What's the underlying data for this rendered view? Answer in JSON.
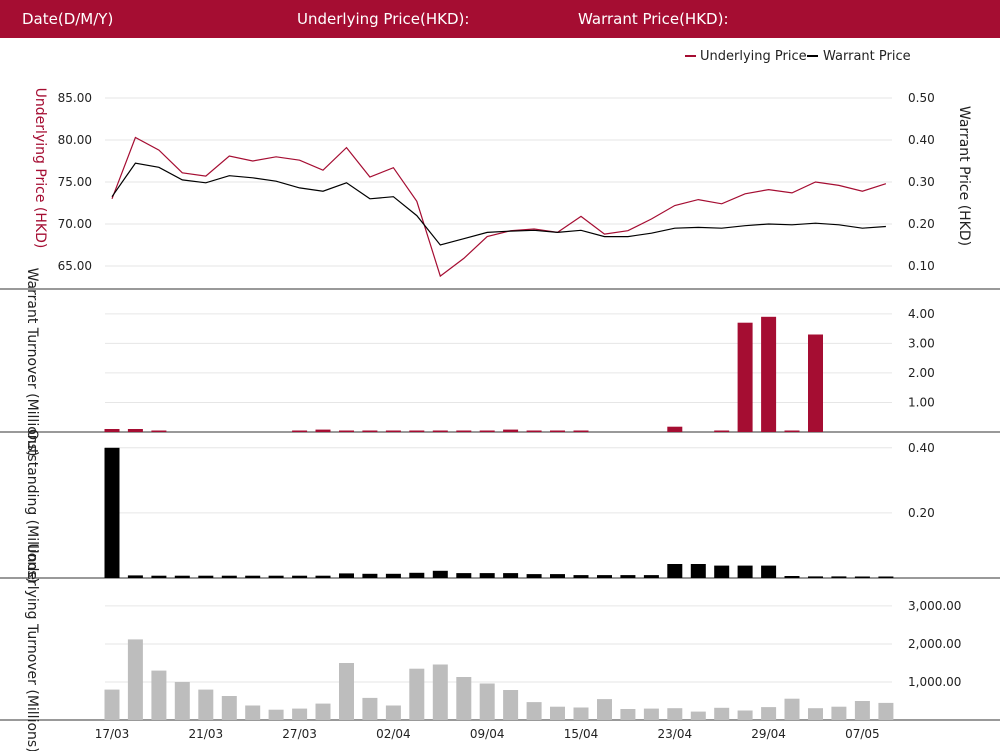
{
  "header": {
    "date_label": "Date(D/M/Y)",
    "underlying_label": "Underlying Price(HKD):",
    "warrant_label": "Warrant Price(HKD):"
  },
  "legend": {
    "underlying": "Underlying Price",
    "warrant": "Warrant Price"
  },
  "colors": {
    "accent": "#a50d32",
    "warrant": "#000000",
    "bars_gray": "#bdbdbd",
    "grid": "#e6e6e6"
  },
  "chart_data": [
    {
      "type": "line",
      "ylabel_left": "Underlying Price (HKD)",
      "ylabel_right": "Warrant Price (HKD)",
      "ylim_left": [
        62.5,
        87.5
      ],
      "ylim_right": [
        0.05,
        0.55
      ],
      "yticks_left": [
        "85.00",
        "80.00",
        "75.00",
        "70.00",
        "65.00"
      ],
      "yticks_right": [
        "0.50",
        "0.40",
        "0.30",
        "0.20",
        "0.10"
      ],
      "series": [
        {
          "name": "Underlying Price",
          "axis": "left",
          "values": [
            73.0,
            80.3,
            78.8,
            76.1,
            75.7,
            78.1,
            77.5,
            78.0,
            77.6,
            76.4,
            79.1,
            75.6,
            76.7,
            72.7,
            63.8,
            65.9,
            68.5,
            69.2,
            69.4,
            69.0,
            70.9,
            68.8,
            69.2,
            70.6,
            72.2,
            72.9,
            72.4,
            73.6,
            74.1,
            73.7,
            75.0,
            74.6,
            73.9,
            74.8
          ]
        },
        {
          "name": "Warrant Price",
          "axis": "right",
          "values": [
            0.265,
            0.345,
            0.335,
            0.305,
            0.298,
            0.315,
            0.31,
            0.302,
            0.286,
            0.278,
            0.298,
            0.26,
            0.265,
            0.22,
            0.15,
            0.165,
            0.18,
            0.183,
            0.185,
            0.18,
            0.185,
            0.17,
            0.17,
            0.178,
            0.19,
            0.192,
            0.19,
            0.196,
            0.2,
            0.198,
            0.202,
            0.198,
            0.19,
            0.194
          ]
        }
      ]
    },
    {
      "type": "bar",
      "ylabel": "Warrant Turnover (Millions)",
      "ylim": [
        0,
        4.4
      ],
      "yticks": [
        "4.00",
        "3.00",
        "2.00",
        "1.00"
      ],
      "values": [
        0.1,
        0.1,
        0.03,
        0,
        0,
        0,
        0,
        0,
        0.03,
        0.08,
        0.03,
        0.03,
        0.03,
        0.03,
        0.03,
        0.03,
        0.03,
        0.08,
        0.03,
        0.03,
        0.03,
        0,
        0,
        0,
        0.18,
        0,
        0.05,
        3.7,
        3.9,
        0.05,
        3.3,
        0,
        0,
        0
      ]
    },
    {
      "type": "bar",
      "ylabel": "Outstanding (Millions)",
      "ylim": [
        0,
        0.43
      ],
      "yticks": [
        "0.40",
        "0.20"
      ],
      "values": [
        0.4,
        0.008,
        0.007,
        0.007,
        0.007,
        0.007,
        0.007,
        0.007,
        0.007,
        0.007,
        0.014,
        0.013,
        0.013,
        0.016,
        0.022,
        0.015,
        0.015,
        0.015,
        0.012,
        0.012,
        0.009,
        0.009,
        0.009,
        0.009,
        0.043,
        0.043,
        0.038,
        0.038,
        0.038,
        0.006,
        0.005,
        0.005,
        0.004,
        0.004
      ]
    },
    {
      "type": "bar",
      "ylabel": "Underlying Turnover (Millions)",
      "ylim": [
        0,
        3550
      ],
      "yticks": [
        "3,000.00",
        "2,000.00",
        "1,000.00"
      ],
      "values": [
        800,
        2120,
        1300,
        1000,
        800,
        630,
        380,
        270,
        300,
        430,
        1500,
        580,
        380,
        1350,
        1460,
        1130,
        960,
        790,
        470,
        350,
        330,
        550,
        290,
        300,
        310,
        220,
        320,
        250,
        340,
        560,
        310,
        350,
        500,
        450
      ]
    }
  ],
  "x_ticks": [
    "17/03",
    "21/03",
    "27/03",
    "02/04",
    "09/04",
    "15/04",
    "23/04",
    "29/04",
    "07/05"
  ]
}
